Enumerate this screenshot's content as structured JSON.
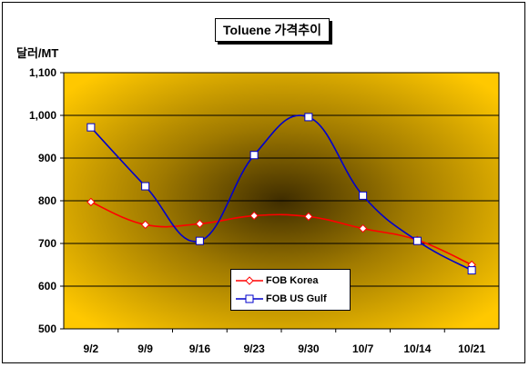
{
  "chart_data": {
    "type": "line",
    "title": "Toluene 가격추이",
    "ylabel": "달러/MT",
    "xlabel": "",
    "categories": [
      "9/2",
      "9/9",
      "9/16",
      "9/23",
      "9/30",
      "10/7",
      "10/14",
      "10/21"
    ],
    "ylim": [
      500,
      1100
    ],
    "yticks": [
      "500",
      "600",
      "700",
      "800",
      "900",
      "1,000",
      "1,100"
    ],
    "grid": true,
    "legend_position": "bottom-center",
    "series": [
      {
        "name": "FOB Korea",
        "color": "#ff0000",
        "marker": "diamond",
        "values": [
          797,
          744,
          746,
          765,
          763,
          735,
          708,
          650
        ]
      },
      {
        "name": "FOB US Gulf",
        "color": "#0000cc",
        "marker": "square",
        "values": [
          972,
          834,
          706,
          907,
          996,
          812,
          706,
          637
        ]
      }
    ],
    "plot_background": {
      "outer": "#ffc800",
      "center": "#3f2d00"
    }
  }
}
